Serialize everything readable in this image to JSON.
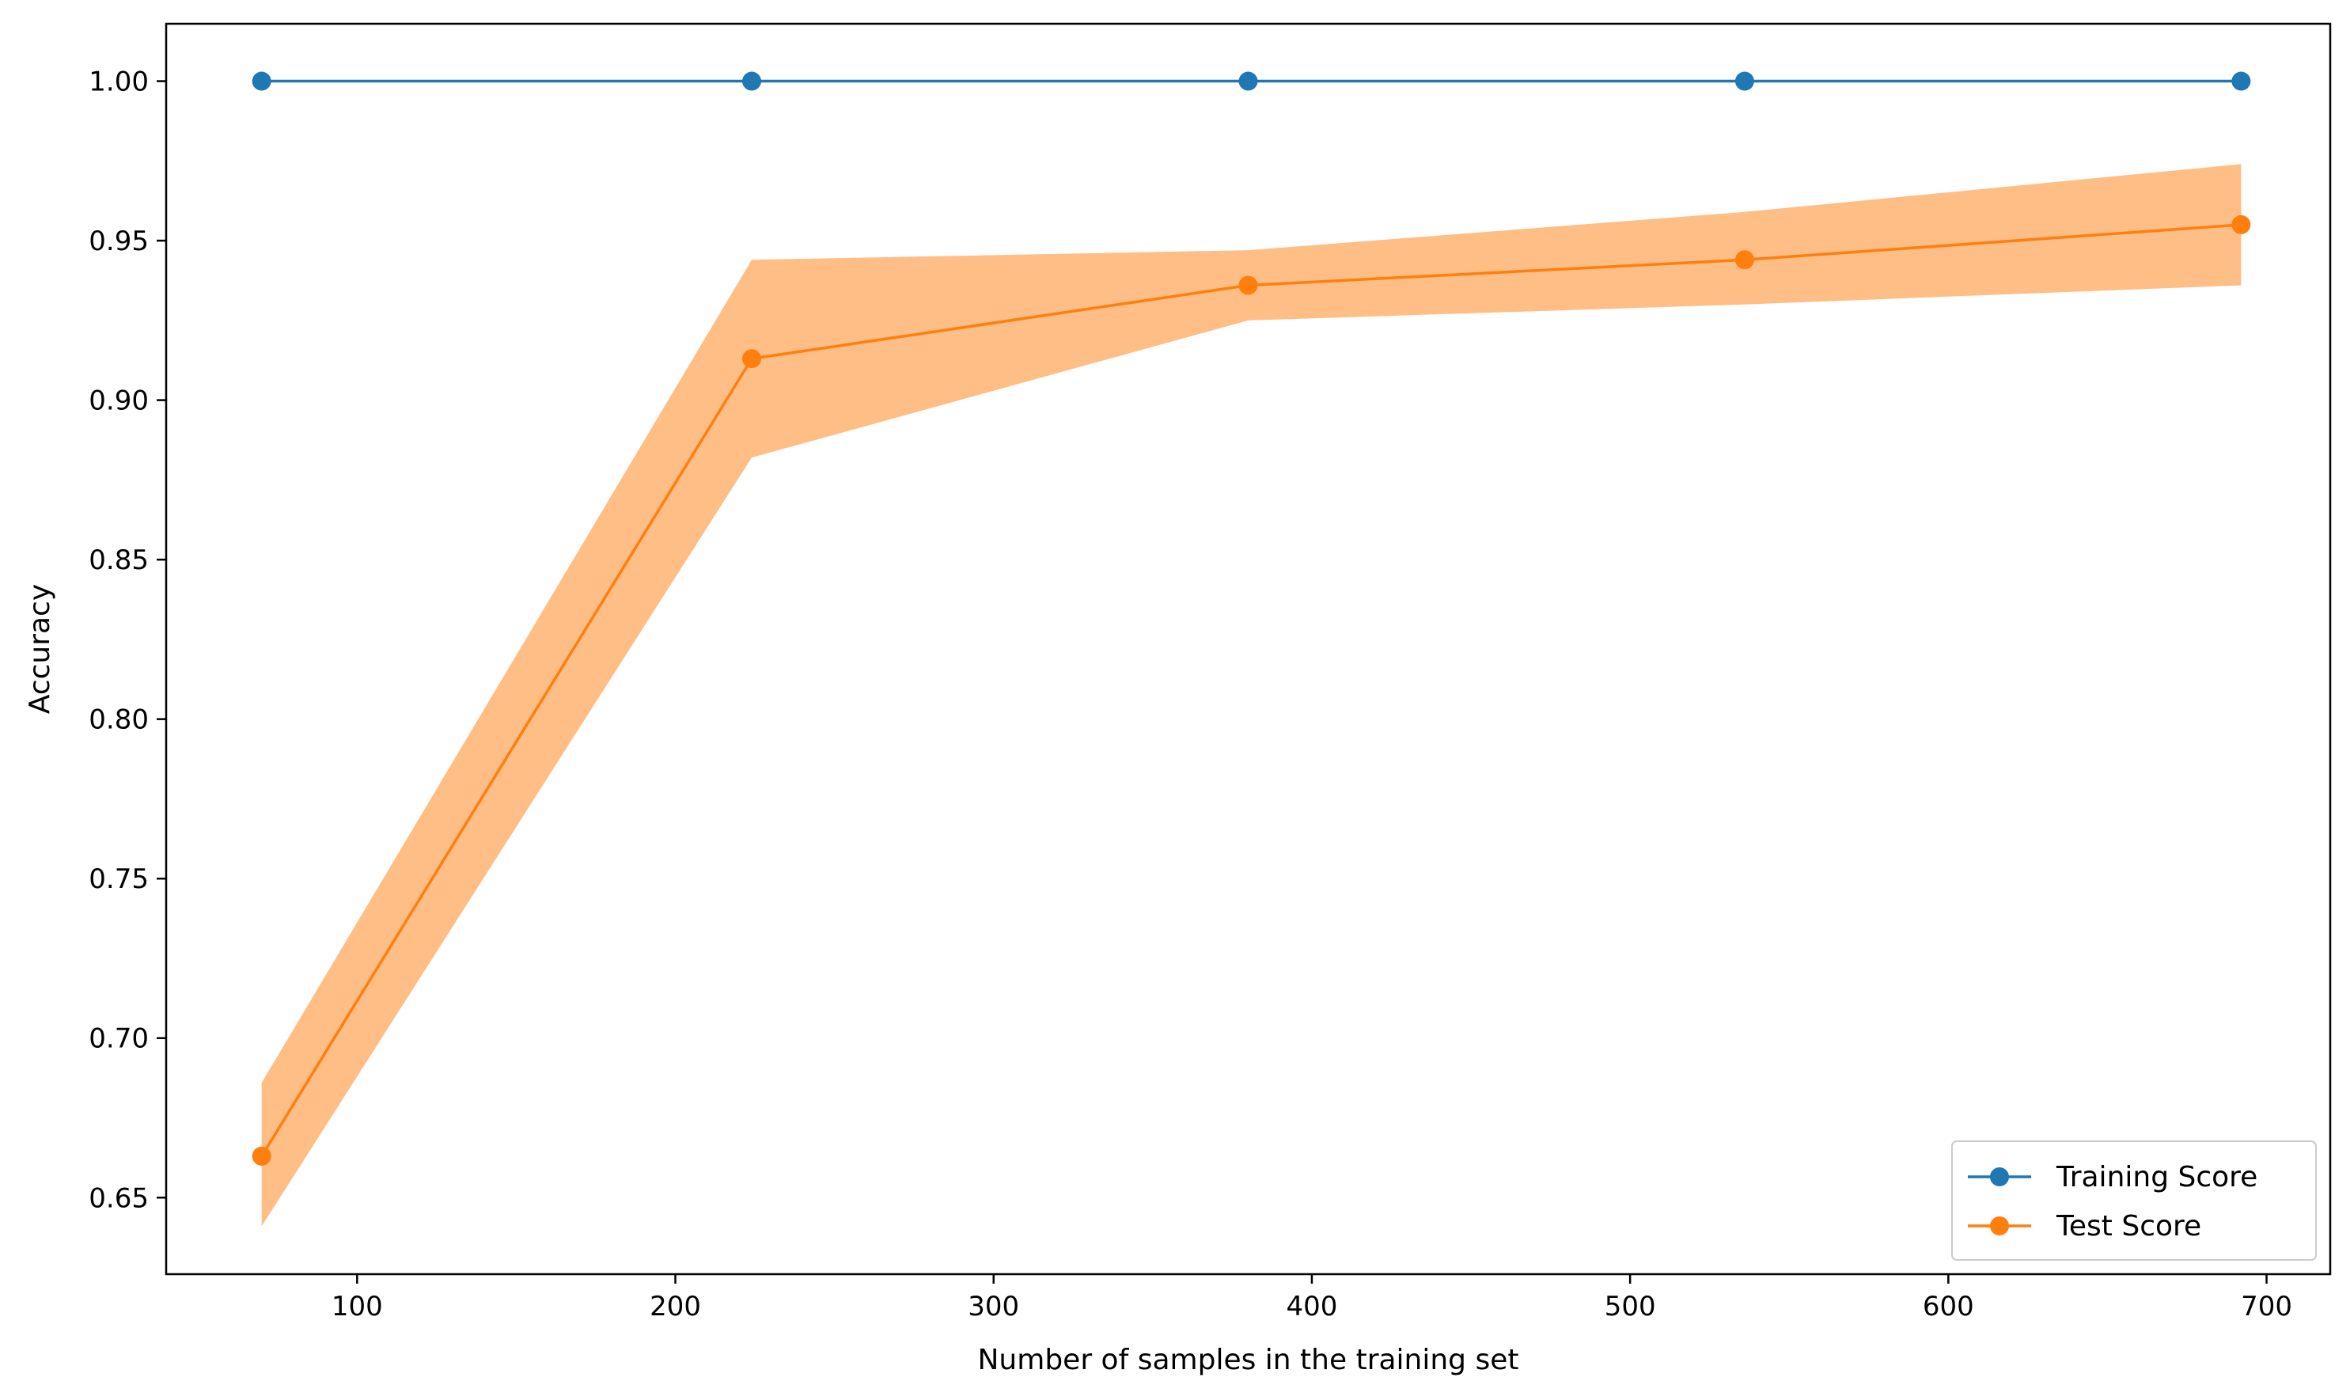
{
  "chart_data": {
    "type": "line",
    "xlabel": "Number of samples in the training set",
    "ylabel": "Accuracy",
    "xlim": [
      40,
      720
    ],
    "ylim": [
      0.626,
      1.018
    ],
    "xticks": [
      100,
      200,
      300,
      400,
      500,
      600,
      700
    ],
    "yticks": [
      0.65,
      0.7,
      0.75,
      0.8,
      0.85,
      0.9,
      0.95,
      1.0
    ],
    "ytick_labels": [
      "0.65",
      "0.70",
      "0.75",
      "0.80",
      "0.85",
      "0.90",
      "0.95",
      "1.00"
    ],
    "grid": false,
    "legend_position": "lower-right",
    "x": [
      70,
      224,
      380,
      536,
      692
    ],
    "series": [
      {
        "name": "Training Score",
        "color": "#1f77b4",
        "values": [
          1.0,
          1.0,
          1.0,
          1.0,
          1.0
        ]
      },
      {
        "name": "Test Score",
        "color": "#ff7f0e",
        "values": [
          0.663,
          0.913,
          0.936,
          0.944,
          0.955
        ],
        "band_lower": [
          0.641,
          0.882,
          0.925,
          0.93,
          0.936
        ],
        "band_upper": [
          0.686,
          0.944,
          0.947,
          0.959,
          0.974
        ],
        "band_color": "#ffbe86"
      }
    ]
  }
}
